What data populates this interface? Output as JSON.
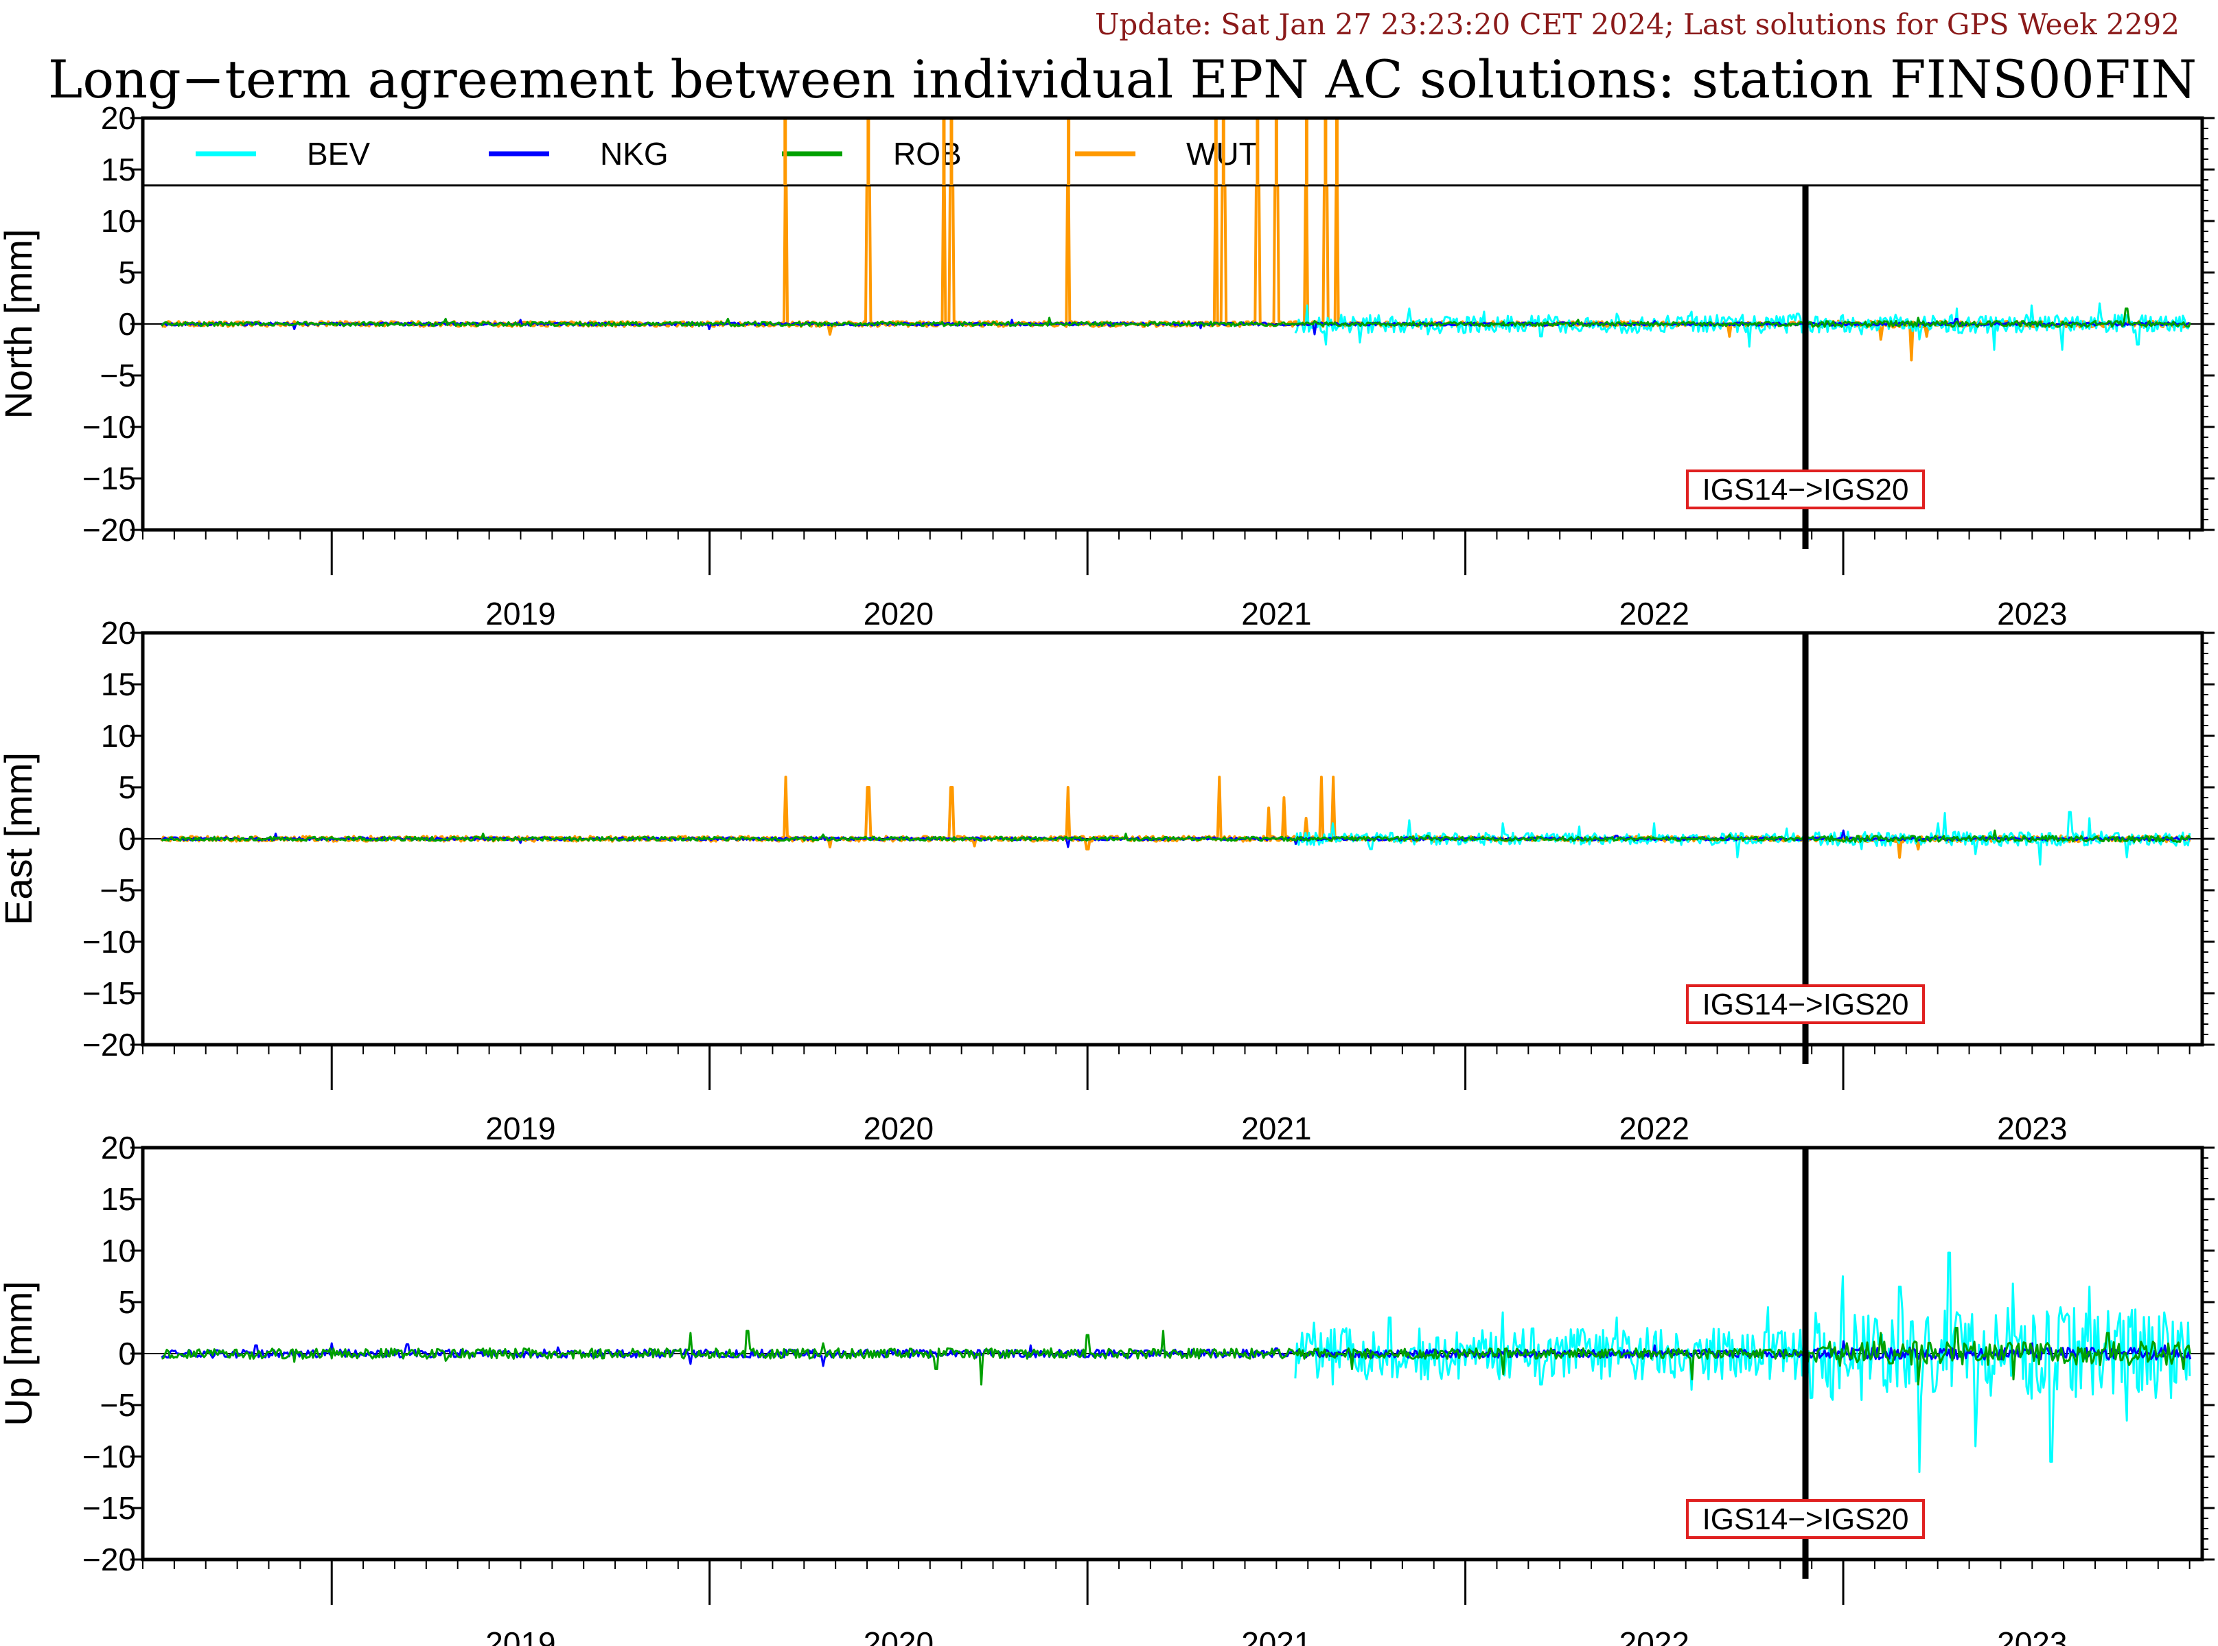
{
  "header": {
    "update": "Update: Sat Jan 27 23:23:20 CET 2024; Last solutions for GPS Week 2292",
    "title": "Long−term agreement between individual EPN AC solutions: station FINS00FIN"
  },
  "chart_data": {
    "type": "line",
    "legend": {
      "placement": "top (inside North panel)",
      "entries": [
        {
          "name": "BEV",
          "color": "#00ffff"
        },
        {
          "name": "NKG",
          "color": "#0000ff"
        },
        {
          "name": "ROB",
          "color": "#00a000"
        },
        {
          "name": "WUT",
          "color": "#ff9900"
        }
      ]
    },
    "x_range": [
      2018.5,
      2023.95
    ],
    "year_labels": [
      "2019",
      "2020",
      "2021",
      "2022",
      "2023"
    ],
    "frame_change": {
      "label": "IGS14−>IGS20",
      "x": 2022.9
    },
    "panels": [
      {
        "ylabel": "North [mm]",
        "ylim": [
          -20,
          20
        ],
        "yticks": [
          "20",
          "15",
          "10",
          "5",
          "0",
          "−5",
          "−10",
          "−15",
          "−20"
        ],
        "series": [
          {
            "name": "BEV",
            "active_from": 2021.55,
            "points": [
              [
                2021.58,
                1.8
              ],
              [
                2021.63,
                -2.0
              ],
              [
                2021.72,
                -1.8
              ],
              [
                2021.85,
                1.5
              ],
              [
                2021.9,
                -1.0
              ],
              [
                2022.05,
                1.2
              ],
              [
                2022.2,
                -1.2
              ],
              [
                2022.4,
                1.0
              ],
              [
                2022.6,
                1.2
              ],
              [
                2022.75,
                -2.2
              ],
              [
                2022.88,
                1.0
              ],
              [
                2023.05,
                -1.0
              ],
              [
                2023.2,
                -1.5
              ],
              [
                2023.3,
                1.5
              ],
              [
                2023.4,
                -2.5
              ],
              [
                2023.5,
                1.8
              ],
              [
                2023.58,
                -2.5
              ],
              [
                2023.68,
                2.0
              ],
              [
                2023.78,
                -2.0
              ],
              [
                2023.9,
                0.8
              ]
            ]
          },
          {
            "name": "NKG",
            "active_from": 2018.55,
            "points": [
              [
                2018.9,
                -0.5
              ],
              [
                2019.5,
                0.4
              ],
              [
                2020.0,
                -0.5
              ],
              [
                2020.8,
                0.4
              ],
              [
                2021.3,
                -0.4
              ],
              [
                2021.6,
                -1.0
              ],
              [
                2022.5,
                0.3
              ],
              [
                2023.3,
                0.5
              ]
            ]
          },
          {
            "name": "ROB",
            "active_from": 2018.55,
            "points": [
              [
                2019.3,
                0.5
              ],
              [
                2020.05,
                0.5
              ],
              [
                2020.9,
                0.6
              ],
              [
                2021.6,
                0.3
              ],
              [
                2022.3,
                0.4
              ],
              [
                2023.2,
                0.6
              ],
              [
                2023.75,
                1.5
              ]
            ]
          },
          {
            "name": "WUT",
            "active_from": 2018.55,
            "points": [
              [
                2020.2,
                20
              ],
              [
                2020.42,
                20
              ],
              [
                2020.62,
                20
              ],
              [
                2020.64,
                20
              ],
              [
                2020.95,
                20
              ],
              [
                2021.34,
                20
              ],
              [
                2021.36,
                20
              ],
              [
                2021.45,
                20
              ],
              [
                2021.5,
                20
              ],
              [
                2021.58,
                20
              ],
              [
                2021.63,
                20
              ],
              [
                2021.66,
                20
              ],
              [
                2020.32,
                -1.0
              ],
              [
                2022.7,
                -1.2
              ],
              [
                2022.9,
                -0.8
              ],
              [
                2023.1,
                -1.5
              ],
              [
                2023.18,
                -3.5
              ],
              [
                2023.22,
                -1.2
              ]
            ]
          }
        ]
      },
      {
        "ylabel": "East [mm]",
        "ylim": [
          -20,
          20
        ],
        "yticks": [
          "20",
          "15",
          "10",
          "5",
          "0",
          "−5",
          "−10",
          "−15",
          "−20"
        ],
        "series": [
          {
            "name": "BEV",
            "active_from": 2021.55,
            "points": [
              [
                2021.65,
                1.5
              ],
              [
                2021.75,
                -1.0
              ],
              [
                2021.85,
                1.8
              ],
              [
                2022.1,
                1.5
              ],
              [
                2022.3,
                1.2
              ],
              [
                2022.5,
                1.5
              ],
              [
                2022.72,
                -1.8
              ],
              [
                2022.85,
                1.0
              ],
              [
                2023.05,
                -1.0
              ],
              [
                2023.25,
                1.5
              ],
              [
                2023.27,
                2.5
              ],
              [
                2023.35,
                -1.5
              ],
              [
                2023.52,
                -2.5
              ],
              [
                2023.6,
                2.6
              ],
              [
                2023.65,
                2.0
              ],
              [
                2023.75,
                -1.8
              ],
              [
                2023.9,
                0.6
              ]
            ]
          },
          {
            "name": "NKG",
            "active_from": 2018.55,
            "points": [
              [
                2018.85,
                0.5
              ],
              [
                2019.5,
                -0.4
              ],
              [
                2020.3,
                0.4
              ],
              [
                2020.95,
                -0.8
              ],
              [
                2021.55,
                -0.5
              ],
              [
                2022.4,
                0.3
              ],
              [
                2023.0,
                0.8
              ]
            ]
          },
          {
            "name": "ROB",
            "active_from": 2018.55,
            "points": [
              [
                2019.4,
                0.5
              ],
              [
                2020.3,
                0.4
              ],
              [
                2021.1,
                0.5
              ],
              [
                2021.9,
                0.3
              ],
              [
                2022.7,
                0.4
              ],
              [
                2023.4,
                0.8
              ]
            ]
          },
          {
            "name": "WUT",
            "active_from": 2018.55,
            "points": [
              [
                2020.2,
                6.0
              ],
              [
                2020.42,
                5.0
              ],
              [
                2020.64,
                5.0
              ],
              [
                2020.95,
                5.0
              ],
              [
                2021.35,
                6.0
              ],
              [
                2021.48,
                3.0
              ],
              [
                2021.52,
                4.0
              ],
              [
                2021.58,
                2.0
              ],
              [
                2021.62,
                6.0
              ],
              [
                2021.65,
                6.0
              ],
              [
                2020.32,
                -0.8
              ],
              [
                2020.7,
                -0.7
              ],
              [
                2021.0,
                -1.0
              ],
              [
                2023.15,
                -1.8
              ],
              [
                2023.2,
                -1.0
              ]
            ]
          }
        ]
      },
      {
        "ylabel": "Up [mm]",
        "ylim": [
          -20,
          20
        ],
        "yticks": [
          "20",
          "15",
          "10",
          "5",
          "0",
          "−5",
          "−10",
          "−15",
          "−20"
        ],
        "series": [
          {
            "name": "BEV",
            "active_from": 2021.55,
            "points": [
              [
                2021.6,
                3.0
              ],
              [
                2021.65,
                -3.0
              ],
              [
                2021.8,
                3.5
              ],
              [
                2021.9,
                -2.5
              ],
              [
                2022.1,
                4.0
              ],
              [
                2022.2,
                -3.0
              ],
              [
                2022.4,
                3.5
              ],
              [
                2022.6,
                -3.5
              ],
              [
                2022.8,
                4.5
              ],
              [
                2023.0,
                7.5
              ],
              [
                2023.05,
                -4.5
              ],
              [
                2023.15,
                6.5
              ],
              [
                2023.2,
                -11.5
              ],
              [
                2023.28,
                9.8
              ],
              [
                2023.35,
                -9.0
              ],
              [
                2023.45,
                6.8
              ],
              [
                2023.55,
                -10.5
              ],
              [
                2023.65,
                6.5
              ],
              [
                2023.75,
                -6.5
              ],
              [
                2023.85,
                4.0
              ],
              [
                2023.9,
                1.0
              ]
            ]
          },
          {
            "name": "NKG",
            "active_from": 2018.55,
            "points": [
              [
                2018.8,
                0.8
              ],
              [
                2019.0,
                1.0
              ],
              [
                2019.2,
                0.9
              ],
              [
                2019.6,
                0.6
              ],
              [
                2019.95,
                -1.0
              ],
              [
                2020.3,
                -1.2
              ],
              [
                2020.85,
                0.8
              ],
              [
                2021.5,
                0.5
              ],
              [
                2022.5,
                0.8
              ],
              [
                2023.0,
                1.2
              ],
              [
                2023.5,
                1.0
              ],
              [
                2023.85,
                0.8
              ]
            ]
          },
          {
            "name": "ROB",
            "active_from": 2018.55,
            "points": [
              [
                2018.9,
                -0.8
              ],
              [
                2019.3,
                -0.7
              ],
              [
                2019.95,
                2.0
              ],
              [
                2020.1,
                2.2
              ],
              [
                2020.3,
                1.0
              ],
              [
                2020.6,
                -1.5
              ],
              [
                2020.72,
                -3.0
              ],
              [
                2021.0,
                1.8
              ],
              [
                2021.2,
                2.2
              ],
              [
                2021.7,
                -1.5
              ],
              [
                2022.1,
                -2.0
              ],
              [
                2022.6,
                -2.5
              ],
              [
                2023.1,
                2.0
              ],
              [
                2023.2,
                -3.0
              ],
              [
                2023.3,
                2.5
              ],
              [
                2023.45,
                -2.5
              ],
              [
                2023.7,
                2.0
              ],
              [
                2023.9,
                -1.5
              ]
            ]
          },
          {
            "name": "WUT",
            "active_from": null,
            "points": []
          }
        ]
      }
    ]
  }
}
